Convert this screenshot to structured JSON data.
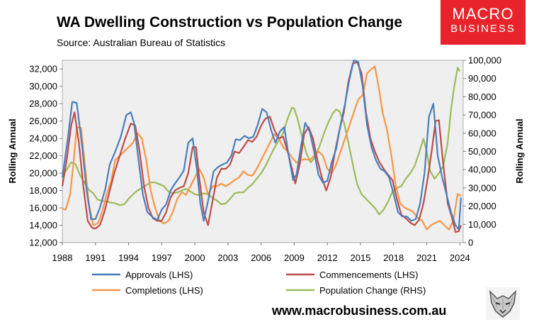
{
  "header": {
    "title": "WA Dwelling Construction vs Population Change",
    "source": "Source: Australian Bureau of Statistics"
  },
  "logo": {
    "line1": "MACRO",
    "line2": "BUSINESS"
  },
  "footer": {
    "url": "www.macrobusiness.com.au"
  },
  "colors": {
    "approvals": "#4a7ebb",
    "commencements": "#be4b48",
    "completions": "#f79646",
    "population": "#9bbb59",
    "plot_bg": "#efefef",
    "logo_bg": "#e8232b"
  },
  "chart_data": {
    "type": "line",
    "title": "WA Dwelling Construction vs Population Change",
    "xlabel": "",
    "ylabel_left": "Rolling Annual",
    "ylabel_right": "Rolling Annual",
    "xlim": [
      1988,
      2024.3
    ],
    "ylim_left": [
      12000,
      33000
    ],
    "ylim_right": [
      0,
      100000
    ],
    "x_ticks": [
      "1988",
      "1991",
      "1994",
      "1997",
      "2000",
      "2003",
      "2006",
      "2009",
      "2012",
      "2015",
      "2018",
      "2021",
      "2024"
    ],
    "x_tick_values": [
      1988,
      1991,
      1994,
      1997,
      2000,
      2003,
      2006,
      2009,
      2012,
      2015,
      2018,
      2021,
      2024
    ],
    "y_left_ticks": [
      "12,000",
      "14,000",
      "16,000",
      "18,000",
      "20,000",
      "22,000",
      "24,000",
      "26,000",
      "28,000",
      "30,000",
      "32,000"
    ],
    "y_left_tick_values": [
      12000,
      14000,
      16000,
      18000,
      20000,
      22000,
      24000,
      26000,
      28000,
      30000,
      32000
    ],
    "y_right_ticks": [
      "0",
      "10,000",
      "20,000",
      "30,000",
      "40,000",
      "50,000",
      "60,000",
      "70,000",
      "80,000",
      "90,000",
      "100,000"
    ],
    "y_right_tick_values": [
      0,
      10000,
      20000,
      30000,
      40000,
      50000,
      60000,
      70000,
      80000,
      90000,
      100000
    ],
    "legend": "bottom",
    "series": [
      {
        "name": "Approvals (LHS)",
        "axis": "left",
        "x": [
          1988,
          1988.5,
          1988.9,
          1989.3,
          1989.8,
          1990.2,
          1990.6,
          1991.0,
          1991.4,
          1991.9,
          1992.3,
          1992.8,
          1993.3,
          1993.8,
          1994.2,
          1994.5,
          1994.9,
          1995.3,
          1995.7,
          1996.2,
          1996.6,
          1997.0,
          1997.4,
          1997.8,
          1998.2,
          1998.6,
          1999.0,
          1999.4,
          1999.8,
          2000.2,
          2000.5,
          2000.8,
          2001.2,
          2001.7,
          2002.1,
          2002.5,
          2002.9,
          2003.3,
          2003.7,
          2004.1,
          2004.5,
          2004.9,
          2005.3,
          2005.7,
          2006.1,
          2006.5,
          2006.9,
          2007.3,
          2007.7,
          2008.1,
          2008.5,
          2008.9,
          2009.2,
          2009.6,
          2010.0,
          2010.4,
          2010.8,
          2011.2,
          2011.6,
          2012.0,
          2012.4,
          2012.8,
          2013.2,
          2013.6,
          2014.0,
          2014.4,
          2014.8,
          2015.2,
          2015.6,
          2016.0,
          2016.4,
          2016.8,
          2017.2,
          2017.6,
          2018.0,
          2018.4,
          2018.8,
          2019.2,
          2019.6,
          2020.0,
          2020.4,
          2020.8,
          2021.2,
          2021.6,
          2022.0,
          2022.4,
          2022.8,
          2023.2,
          2023.6,
          2023.9,
          2024.1
        ],
        "y": [
          19500,
          24000,
          28200,
          28100,
          23000,
          18000,
          14700,
          14700,
          16000,
          18200,
          21000,
          22500,
          24200,
          26700,
          27000,
          25800,
          21500,
          17500,
          15500,
          14900,
          14600,
          15800,
          16400,
          18000,
          18800,
          19500,
          20300,
          23500,
          24000,
          20300,
          16500,
          14500,
          16800,
          20200,
          20700,
          21000,
          21200,
          22000,
          23900,
          23800,
          24300,
          24000,
          24200,
          25600,
          27400,
          27000,
          25000,
          23500,
          24800,
          25300,
          22000,
          19200,
          19800,
          23000,
          25800,
          24800,
          22500,
          19800,
          18900,
          19100,
          21300,
          22800,
          25600,
          28000,
          30800,
          33000,
          32800,
          30000,
          25500,
          23000,
          21500,
          20500,
          20200,
          19500,
          17600,
          15500,
          15000,
          15000,
          14500,
          14700,
          16500,
          20000,
          26500,
          28000,
          22000,
          19500,
          17500,
          15500,
          14000,
          13500,
          17200
        ]
      },
      {
        "name": "Commencements (LHS)",
        "axis": "left",
        "x": [
          1988,
          1988.4,
          1988.8,
          1989.1,
          1989.5,
          1989.9,
          1990.3,
          1990.7,
          1991.0,
          1991.4,
          1991.8,
          1992.2,
          1992.7,
          1993.2,
          1993.7,
          1994.2,
          1994.6,
          1995.0,
          1995.4,
          1995.8,
          1996.2,
          1996.6,
          1997.0,
          1997.4,
          1997.8,
          1998.2,
          1998.6,
          1999.0,
          1999.4,
          1999.8,
          2000.1,
          2000.4,
          2000.8,
          2001.2,
          2001.6,
          2002.0,
          2002.4,
          2002.8,
          2003.2,
          2003.6,
          2004.0,
          2004.4,
          2004.8,
          2005.2,
          2005.6,
          2006.0,
          2006.4,
          2006.8,
          2007.2,
          2007.6,
          2008.0,
          2008.4,
          2008.8,
          2009.1,
          2009.5,
          2009.9,
          2010.3,
          2010.7,
          2011.1,
          2011.5,
          2011.9,
          2012.3,
          2012.7,
          2013.1,
          2013.5,
          2013.9,
          2014.3,
          2014.7,
          2015.1,
          2015.5,
          2015.9,
          2016.3,
          2016.7,
          2017.1,
          2017.5,
          2017.9,
          2018.3,
          2018.7,
          2019.1,
          2019.5,
          2019.9,
          2020.3,
          2020.7,
          2021.1,
          2021.5,
          2021.8,
          2022.1,
          2022.5,
          2022.9,
          2023.3,
          2023.6,
          2023.9,
          2024.1
        ],
        "y": [
          18500,
          21500,
          25500,
          27000,
          23500,
          18500,
          14500,
          13700,
          13600,
          14000,
          15500,
          17500,
          20000,
          22000,
          24000,
          25700,
          25500,
          22500,
          18500,
          16000,
          14800,
          14500,
          14500,
          15500,
          17200,
          18000,
          18300,
          18500,
          20000,
          23000,
          23000,
          19500,
          15500,
          14000,
          16800,
          19500,
          20500,
          20500,
          21000,
          22500,
          22300,
          23000,
          23800,
          23600,
          24200,
          25500,
          26300,
          26500,
          25000,
          24000,
          24200,
          22500,
          20500,
          18800,
          21000,
          24500,
          25300,
          24000,
          21500,
          19500,
          18000,
          19500,
          22500,
          25000,
          27000,
          30500,
          32600,
          32800,
          31500,
          27000,
          24000,
          22500,
          21300,
          20500,
          19800,
          19200,
          17000,
          15200,
          14800,
          14300,
          14000,
          14600,
          16500,
          19500,
          23000,
          26000,
          26100,
          21000,
          16500,
          14800,
          13200,
          13300,
          14000
        ]
      },
      {
        "name": "Completions (LHS)",
        "axis": "left",
        "x": [
          1988,
          1988.3,
          1988.7,
          1989.0,
          1989.3,
          1989.7,
          1990.0,
          1990.4,
          1990.8,
          1991.2,
          1991.6,
          1992.0,
          1992.4,
          1992.8,
          1993.2,
          1993.6,
          1994.0,
          1994.4,
          1994.8,
          1995.2,
          1995.6,
          1996.0,
          1996.4,
          1996.8,
          1997.2,
          1997.6,
          1998.0,
          1998.4,
          1998.8,
          1999.2,
          1999.6,
          2000.0,
          2000.4,
          2000.8,
          2001.2,
          2001.6,
          2002.0,
          2002.4,
          2002.8,
          2003.2,
          2003.6,
          2004.0,
          2004.4,
          2004.8,
          2005.2,
          2005.6,
          2006.0,
          2006.4,
          2006.8,
          2007.2,
          2007.6,
          2008.0,
          2008.4,
          2008.8,
          2009.2,
          2009.6,
          2010.0,
          2010.4,
          2010.8,
          2011.2,
          2011.6,
          2012.0,
          2012.4,
          2012.8,
          2013.2,
          2013.6,
          2014.0,
          2014.4,
          2014.8,
          2015.2,
          2015.6,
          2016.0,
          2016.3,
          2016.7,
          2017.0,
          2017.4,
          2017.8,
          2018.2,
          2018.6,
          2019.0,
          2019.4,
          2019.8,
          2020.2,
          2020.6,
          2021.0,
          2021.4,
          2021.8,
          2022.2,
          2022.6,
          2023.0,
          2023.4,
          2023.8,
          2024.1
        ],
        "y": [
          15900,
          15800,
          17500,
          21000,
          25300,
          25200,
          21500,
          16500,
          14000,
          14200,
          15500,
          17500,
          19000,
          21500,
          22000,
          22500,
          23000,
          23500,
          24600,
          24000,
          21500,
          18000,
          16000,
          14500,
          14200,
          14500,
          15500,
          17000,
          17800,
          17500,
          18500,
          19500,
          20500,
          19500,
          17500,
          18500,
          18500,
          18800,
          18500,
          18800,
          19200,
          19500,
          20200,
          19800,
          19700,
          20500,
          21500,
          22500,
          23500,
          24500,
          24000,
          23000,
          22500,
          21800,
          21200,
          21500,
          21600,
          21500,
          22000,
          22500,
          22000,
          20500,
          20000,
          21000,
          22500,
          24000,
          25500,
          27000,
          28500,
          29000,
          31500,
          32000,
          32300,
          29500,
          27000,
          25000,
          22000,
          18500,
          16500,
          16000,
          15800,
          15500,
          14800,
          14500,
          13500,
          14000,
          14300,
          14500,
          14000,
          13500,
          14500,
          17600,
          17400
        ]
      },
      {
        "name": "Population Change (RHS)",
        "axis": "right",
        "x": [
          1988,
          1988.4,
          1988.8,
          1989.2,
          1989.6,
          1990.0,
          1990.4,
          1990.8,
          1991.2,
          1991.6,
          1992.0,
          1992.4,
          1992.8,
          1993.2,
          1993.6,
          1994.0,
          1994.4,
          1994.8,
          1995.2,
          1995.6,
          1996.0,
          1996.4,
          1996.8,
          1997.2,
          1997.6,
          1998.0,
          1998.4,
          1998.8,
          1999.2,
          1999.6,
          2000.0,
          2000.4,
          2000.8,
          2001.2,
          2001.6,
          2002.0,
          2002.4,
          2002.8,
          2003.2,
          2003.6,
          2004.0,
          2004.4,
          2004.8,
          2005.2,
          2005.6,
          2006.0,
          2006.4,
          2006.8,
          2007.2,
          2007.6,
          2008.0,
          2008.4,
          2008.8,
          2009.0,
          2009.3,
          2009.7,
          2010.1,
          2010.5,
          2010.9,
          2011.3,
          2011.7,
          2012.1,
          2012.5,
          2012.8,
          2013.1,
          2013.5,
          2013.9,
          2014.3,
          2014.7,
          2015.1,
          2015.5,
          2015.9,
          2016.3,
          2016.7,
          2017.1,
          2017.5,
          2017.9,
          2018.3,
          2018.7,
          2019.1,
          2019.5,
          2019.9,
          2020.3,
          2020.7,
          2021.0,
          2021.3,
          2021.7,
          2022.1,
          2022.5,
          2022.9,
          2023.2,
          2023.5,
          2023.8,
          2024.0
        ],
        "y": [
          36000,
          40000,
          44000,
          43000,
          37000,
          33000,
          29000,
          27000,
          23500,
          23000,
          22500,
          22000,
          21500,
          20500,
          21000,
          24000,
          26500,
          28500,
          30000,
          31500,
          33000,
          33000,
          32000,
          31000,
          28000,
          27000,
          27500,
          28500,
          29500,
          28000,
          26500,
          26000,
          27000,
          26500,
          24500,
          23000,
          21000,
          21500,
          24000,
          27000,
          27500,
          27500,
          30000,
          32000,
          35000,
          38000,
          42000,
          47000,
          52000,
          56000,
          60000,
          68000,
          74000,
          73500,
          68000,
          58000,
          49000,
          44000,
          47000,
          53000,
          60000,
          66000,
          71000,
          73000,
          72000,
          66000,
          55000,
          43000,
          32000,
          26500,
          24000,
          21500,
          19000,
          15500,
          18000,
          22500,
          28000,
          30000,
          31000,
          35000,
          38000,
          42000,
          49000,
          57000,
          50000,
          39500,
          35000,
          38000,
          42000,
          55000,
          73000,
          86000,
          96000,
          94000
        ]
      }
    ]
  }
}
